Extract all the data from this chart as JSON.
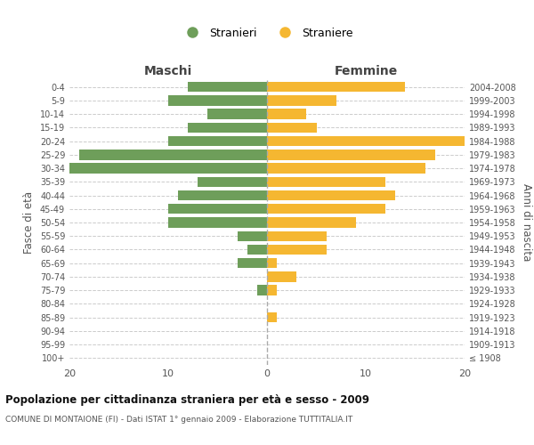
{
  "age_groups": [
    "100+",
    "95-99",
    "90-94",
    "85-89",
    "80-84",
    "75-79",
    "70-74",
    "65-69",
    "60-64",
    "55-59",
    "50-54",
    "45-49",
    "40-44",
    "35-39",
    "30-34",
    "25-29",
    "20-24",
    "15-19",
    "10-14",
    "5-9",
    "0-4"
  ],
  "birth_years": [
    "≤ 1908",
    "1909-1913",
    "1914-1918",
    "1919-1923",
    "1924-1928",
    "1929-1933",
    "1934-1938",
    "1939-1943",
    "1944-1948",
    "1949-1953",
    "1954-1958",
    "1959-1963",
    "1964-1968",
    "1969-1973",
    "1974-1978",
    "1979-1983",
    "1984-1988",
    "1989-1993",
    "1994-1998",
    "1999-2003",
    "2004-2008"
  ],
  "maschi": [
    0,
    0,
    0,
    0,
    0,
    1,
    0,
    3,
    2,
    3,
    10,
    10,
    9,
    7,
    20,
    19,
    10,
    8,
    6,
    10,
    8
  ],
  "femmine": [
    0,
    0,
    0,
    1,
    0,
    1,
    3,
    1,
    6,
    6,
    9,
    12,
    13,
    12,
    16,
    17,
    20,
    5,
    4,
    7,
    14
  ],
  "male_color": "#6e9e5a",
  "female_color": "#f5b731",
  "background_color": "#ffffff",
  "grid_color": "#cccccc",
  "title": "Popolazione per cittadinanza straniera per età e sesso - 2009",
  "subtitle": "COMUNE DI MONTAIONE (FI) - Dati ISTAT 1° gennaio 2009 - Elaborazione TUTTITALIA.IT",
  "ylabel_left": "Fasce di età",
  "ylabel_right": "Anni di nascita",
  "xlabel_left": "Maschi",
  "xlabel_right": "Femmine",
  "legend_male": "Stranieri",
  "legend_female": "Straniere",
  "xlim": 20
}
